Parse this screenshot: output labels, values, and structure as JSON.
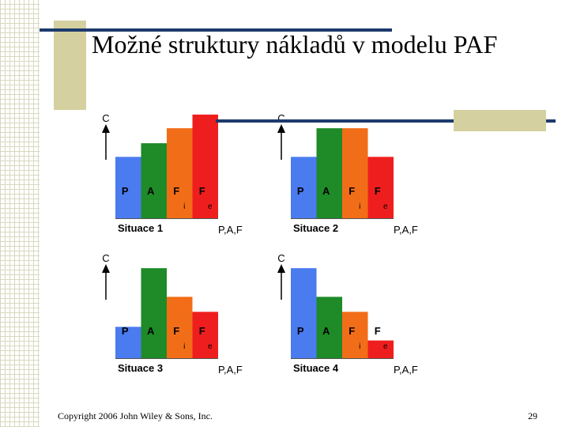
{
  "slide": {
    "title": "Možné struktury nákladů v modelu PAF",
    "footer_left": "Copyright 2006 John Wiley & Sons, Inc.",
    "page_number": "29"
  },
  "colors": {
    "P": "#4a7bef",
    "A": "#1e8a28",
    "Fi": "#f26d18",
    "Fe": "#ef1e1e",
    "accent_line": "#1c3a6c",
    "accent_box": "#d4d0a0"
  },
  "chart_data": [
    {
      "type": "bar",
      "title": "Situace 1",
      "ylabel": "C",
      "xlabel": "P,A,F",
      "categories": [
        "P",
        "A",
        "F",
        "F"
      ],
      "subscripts": [
        "",
        "",
        "i",
        "e"
      ],
      "values": [
        45,
        55,
        66,
        76
      ],
      "ylim": [
        0,
        80
      ]
    },
    {
      "type": "bar",
      "title": "Situace 2",
      "ylabel": "C",
      "xlabel": "P,A,F",
      "categories": [
        "P",
        "A",
        "F",
        "F"
      ],
      "subscripts": [
        "",
        "",
        "i",
        "e"
      ],
      "values": [
        45,
        66,
        66,
        45
      ],
      "ylim": [
        0,
        80
      ]
    },
    {
      "type": "bar",
      "title": "Situace 3",
      "ylabel": "C",
      "xlabel": "P,A,F",
      "categories": [
        "P",
        "A",
        "F",
        "F"
      ],
      "subscripts": [
        "",
        "",
        "i",
        "e"
      ],
      "values": [
        23,
        66,
        45,
        34
      ],
      "ylim": [
        0,
        80
      ]
    },
    {
      "type": "bar",
      "title": "Situace 4",
      "ylabel": "C",
      "xlabel": "P,A,F",
      "categories": [
        "P",
        "A",
        "F",
        "F"
      ],
      "subscripts": [
        "",
        "",
        "i",
        "e"
      ],
      "values": [
        66,
        45,
        34,
        13
      ],
      "ylim": [
        0,
        80
      ]
    }
  ]
}
